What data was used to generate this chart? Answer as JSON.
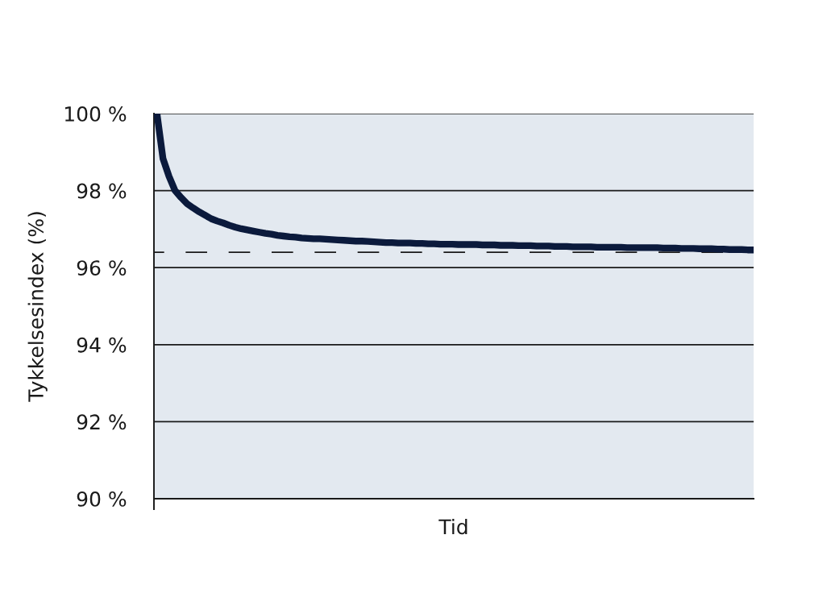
{
  "chart_data": {
    "type": "line",
    "xlabel": "Tid",
    "ylabel": "Tykkelsesindex (%)",
    "categories": [
      null,
      null,
      null,
      null,
      null,
      null,
      null,
      null,
      null,
      null,
      null,
      null,
      null,
      null,
      null,
      null,
      null,
      null,
      null,
      null,
      null,
      null,
      null,
      null,
      null,
      null,
      null,
      null,
      null,
      null,
      null,
      null,
      null,
      null,
      null,
      null,
      null,
      null,
      null,
      null,
      null,
      null,
      null,
      null,
      null,
      null,
      null,
      null,
      null,
      null,
      null,
      null,
      null,
      null,
      null,
      null,
      null,
      null,
      null,
      null,
      null,
      null,
      null,
      null,
      null,
      null,
      null,
      null,
      null,
      null,
      null,
      null,
      null,
      null,
      null,
      null,
      null,
      null,
      null,
      null,
      null,
      null,
      null,
      null,
      null,
      null,
      null,
      null,
      null,
      null,
      null,
      null,
      null,
      null,
      null,
      null,
      null,
      null,
      null,
      null
    ],
    "series": [
      {
        "color": "#0b1a3c",
        "values": [
          100,
          98.83,
          98.37,
          98.0,
          97.82,
          97.66,
          97.55,
          97.45,
          97.36,
          97.27,
          97.21,
          97.16,
          97.1,
          97.05,
          97.01,
          96.98,
          96.95,
          96.92,
          96.89,
          96.87,
          96.84,
          96.82,
          96.8,
          96.79,
          96.77,
          96.76,
          96.75,
          96.75,
          96.74,
          96.73,
          96.72,
          96.71,
          96.7,
          96.69,
          96.69,
          96.68,
          96.67,
          96.66,
          96.65,
          96.65,
          96.64,
          96.64,
          96.64,
          96.63,
          96.63,
          96.62,
          96.62,
          96.61,
          96.61,
          96.61,
          96.6,
          96.6,
          96.6,
          96.6,
          96.59,
          96.59,
          96.59,
          96.58,
          96.58,
          96.58,
          96.57,
          96.57,
          96.57,
          96.56,
          96.56,
          96.56,
          96.55,
          96.55,
          96.55,
          96.54,
          96.54,
          96.54,
          96.54,
          96.53,
          96.53,
          96.53,
          96.53,
          96.53,
          96.52,
          96.52,
          96.52,
          96.52,
          96.52,
          96.52,
          96.51,
          96.51,
          96.51,
          96.5,
          96.5,
          96.5,
          96.49,
          96.49,
          96.49,
          96.48,
          96.48,
          96.47,
          96.47,
          96.47,
          96.46,
          96.46
        ]
      }
    ],
    "ylim": [
      90,
      100
    ],
    "yticks": [
      {
        "value": 90,
        "label": "90 %"
      },
      {
        "value": 92,
        "label": "92 %"
      },
      {
        "value": 94,
        "label": "94 %"
      },
      {
        "value": 96,
        "label": "96 %"
      },
      {
        "value": 98,
        "label": "98 %"
      },
      {
        "value": 100,
        "label": "100 %"
      }
    ],
    "grid": "y",
    "tick_labels": "y",
    "line_style": "solid",
    "ref_lines": [
      {
        "axis": "y",
        "value": 96.4,
        "color": "#1a1a1a",
        "line_style": "dashed"
      }
    ]
  }
}
